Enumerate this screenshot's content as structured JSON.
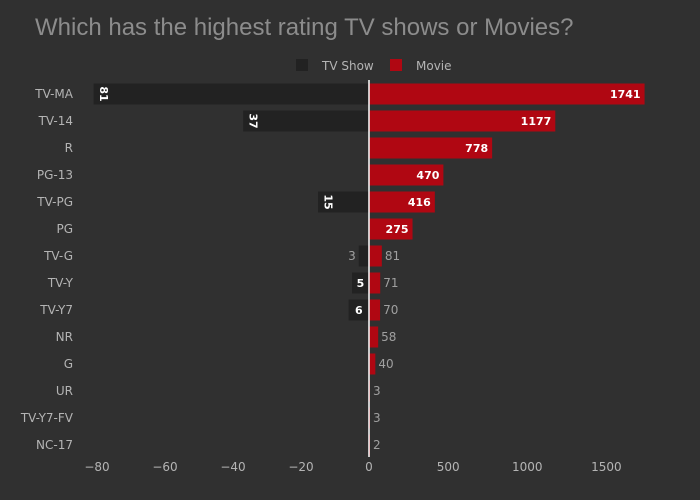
{
  "chart_data": {
    "type": "bar",
    "orientation": "horizontal",
    "title": "Which has the highest rating TV shows or Movies?",
    "categories": [
      "TV-MA",
      "TV-14",
      "R",
      "PG-13",
      "TV-PG",
      "PG",
      "TV-G",
      "TV-Y",
      "TV-Y7",
      "NR",
      "G",
      "UR",
      "TV-Y7-FV",
      "NC-17"
    ],
    "series": [
      {
        "name": "TV Show",
        "color": "#222222",
        "values": [
          81,
          37,
          null,
          null,
          15,
          null,
          3,
          5,
          6,
          null,
          null,
          null,
          null,
          null
        ]
      },
      {
        "name": "Movie",
        "color": "#b00712",
        "values": [
          1741,
          1177,
          778,
          470,
          416,
          275,
          81,
          71,
          70,
          58,
          40,
          3,
          3,
          2
        ]
      }
    ],
    "left_axis": {
      "range": [
        -80,
        0
      ],
      "ticks": [
        -80,
        -60,
        -40,
        -20,
        0
      ],
      "tick_labels": [
        "−80",
        "−60",
        "−40",
        "−20",
        "0"
      ]
    },
    "right_axis": {
      "range": [
        0,
        1750
      ],
      "ticks": [
        500,
        1000,
        1500
      ],
      "tick_labels": [
        "500",
        "1000",
        "1500"
      ]
    },
    "legend_position": "top-center",
    "grid": false,
    "background": "#303030"
  }
}
